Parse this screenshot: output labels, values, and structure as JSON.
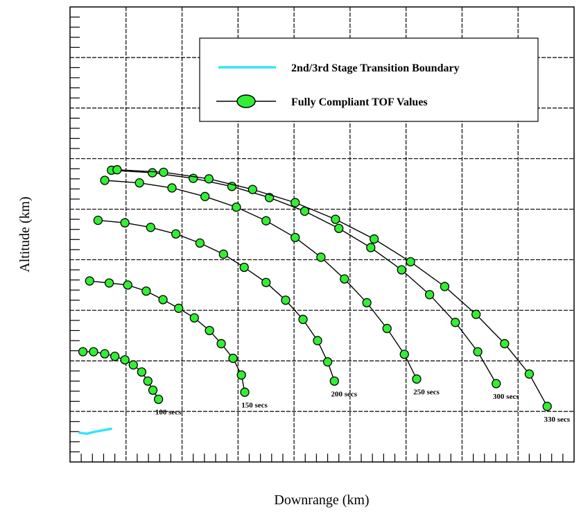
{
  "chart_data": {
    "type": "scatter",
    "title": "",
    "xlabel": "Downrange (km)",
    "ylabel": "Altitude (km)",
    "xlim": [
      0,
      9
    ],
    "ylim": [
      0,
      9
    ],
    "grid": true,
    "legend_position": "top-right",
    "legend": [
      {
        "label": "2nd/3rd Stage Transition Boundary",
        "color": "#33e6f2",
        "style": "line"
      },
      {
        "label": "Fully Compliant TOF Values",
        "color": "#33ee33",
        "style": "line-marker"
      }
    ],
    "series": [
      {
        "label": "100 secs",
        "points": [
          [
            0.23,
            2.18
          ],
          [
            0.42,
            2.18
          ],
          [
            0.62,
            2.14
          ],
          [
            0.8,
            2.09
          ],
          [
            0.98,
            2.02
          ],
          [
            1.13,
            1.92
          ],
          [
            1.28,
            1.78
          ],
          [
            1.39,
            1.6
          ],
          [
            1.48,
            1.42
          ],
          [
            1.58,
            1.24
          ]
        ]
      },
      {
        "label": "150 secs",
        "points": [
          [
            0.35,
            3.58
          ],
          [
            0.7,
            3.54
          ],
          [
            1.03,
            3.5
          ],
          [
            1.36,
            3.38
          ],
          [
            1.66,
            3.21
          ],
          [
            1.94,
            3.04
          ],
          [
            2.22,
            2.85
          ],
          [
            2.49,
            2.6
          ],
          [
            2.7,
            2.34
          ],
          [
            2.91,
            2.05
          ],
          [
            3.06,
            1.72
          ],
          [
            3.12,
            1.38
          ]
        ]
      },
      {
        "label": "200 secs",
        "points": [
          [
            0.5,
            4.78
          ],
          [
            0.98,
            4.73
          ],
          [
            1.44,
            4.64
          ],
          [
            1.89,
            4.51
          ],
          [
            2.32,
            4.33
          ],
          [
            2.74,
            4.11
          ],
          [
            3.11,
            3.85
          ],
          [
            3.5,
            3.55
          ],
          [
            3.85,
            3.2
          ],
          [
            4.16,
            2.82
          ],
          [
            4.42,
            2.4
          ],
          [
            4.6,
            1.98
          ],
          [
            4.72,
            1.6
          ]
        ]
      },
      {
        "label": "250 secs",
        "points": [
          [
            0.62,
            5.57
          ],
          [
            1.24,
            5.52
          ],
          [
            1.82,
            5.42
          ],
          [
            2.41,
            5.25
          ],
          [
            2.97,
            5.04
          ],
          [
            3.5,
            4.77
          ],
          [
            4.02,
            4.44
          ],
          [
            4.48,
            4.05
          ],
          [
            4.9,
            3.62
          ],
          [
            5.3,
            3.15
          ],
          [
            5.66,
            2.64
          ],
          [
            5.97,
            2.13
          ],
          [
            6.19,
            1.64
          ]
        ]
      },
      {
        "label": "300 secs",
        "points": [
          [
            0.74,
            5.77
          ],
          [
            1.47,
            5.72
          ],
          [
            2.2,
            5.61
          ],
          [
            2.89,
            5.45
          ],
          [
            3.56,
            5.23
          ],
          [
            4.19,
            4.96
          ],
          [
            4.8,
            4.62
          ],
          [
            5.37,
            4.24
          ],
          [
            5.92,
            3.8
          ],
          [
            6.42,
            3.31
          ],
          [
            6.88,
            2.76
          ],
          [
            7.28,
            2.18
          ],
          [
            7.61,
            1.55
          ]
        ]
      },
      {
        "label": "330 secs",
        "points": [
          [
            0.84,
            5.78
          ],
          [
            1.67,
            5.73
          ],
          [
            2.48,
            5.6
          ],
          [
            3.26,
            5.39
          ],
          [
            4.02,
            5.13
          ],
          [
            4.74,
            4.8
          ],
          [
            5.43,
            4.41
          ],
          [
            6.08,
            3.96
          ],
          [
            6.69,
            3.47
          ],
          [
            7.25,
            2.92
          ],
          [
            7.76,
            2.34
          ],
          [
            8.2,
            1.74
          ],
          [
            8.52,
            1.1
          ]
        ]
      }
    ],
    "transition_boundary": [
      [
        0.15,
        0.58
      ],
      [
        0.3,
        0.56
      ],
      [
        0.45,
        0.6
      ],
      [
        0.6,
        0.63
      ],
      [
        0.75,
        0.66
      ]
    ]
  }
}
